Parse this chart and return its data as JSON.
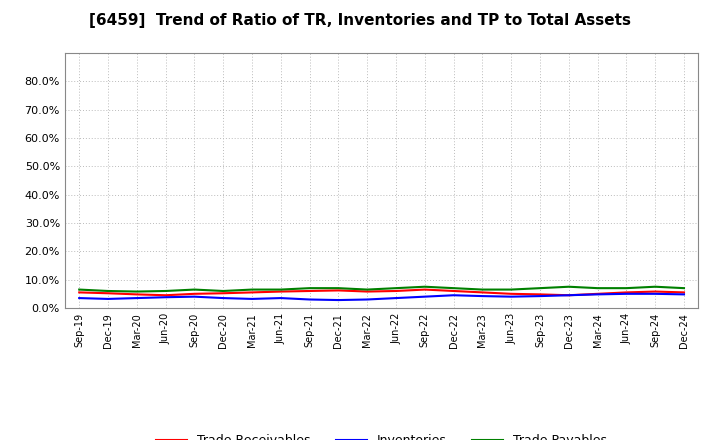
{
  "title": "[6459]  Trend of Ratio of TR, Inventories and TP to Total Assets",
  "x_labels": [
    "Sep-19",
    "Dec-19",
    "Mar-20",
    "Jun-20",
    "Sep-20",
    "Dec-20",
    "Mar-21",
    "Jun-21",
    "Sep-21",
    "Dec-21",
    "Mar-22",
    "Jun-22",
    "Sep-22",
    "Dec-22",
    "Mar-23",
    "Jun-23",
    "Sep-23",
    "Dec-23",
    "Mar-24",
    "Jun-24",
    "Sep-24",
    "Dec-24"
  ],
  "trade_receivables": [
    5.5,
    5.2,
    4.8,
    4.5,
    5.0,
    5.2,
    5.5,
    5.8,
    6.0,
    6.2,
    5.8,
    6.0,
    6.5,
    6.0,
    5.5,
    5.0,
    4.8,
    4.5,
    5.0,
    5.5,
    5.8,
    5.5
  ],
  "inventories": [
    3.5,
    3.2,
    3.5,
    3.8,
    4.0,
    3.5,
    3.2,
    3.5,
    3.0,
    2.8,
    3.0,
    3.5,
    4.0,
    4.5,
    4.2,
    4.0,
    4.2,
    4.5,
    4.8,
    5.0,
    5.0,
    4.8
  ],
  "trade_payables": [
    6.5,
    6.0,
    5.8,
    6.0,
    6.5,
    6.0,
    6.5,
    6.5,
    7.0,
    7.0,
    6.5,
    7.0,
    7.5,
    7.0,
    6.5,
    6.5,
    7.0,
    7.5,
    7.0,
    7.0,
    7.5,
    7.0
  ],
  "tr_color": "#ff0000",
  "inv_color": "#0000ff",
  "tp_color": "#008000",
  "background_color": "#ffffff",
  "legend_tr": "Trade Receivables",
  "legend_inv": "Inventories",
  "legend_tp": "Trade Payables"
}
